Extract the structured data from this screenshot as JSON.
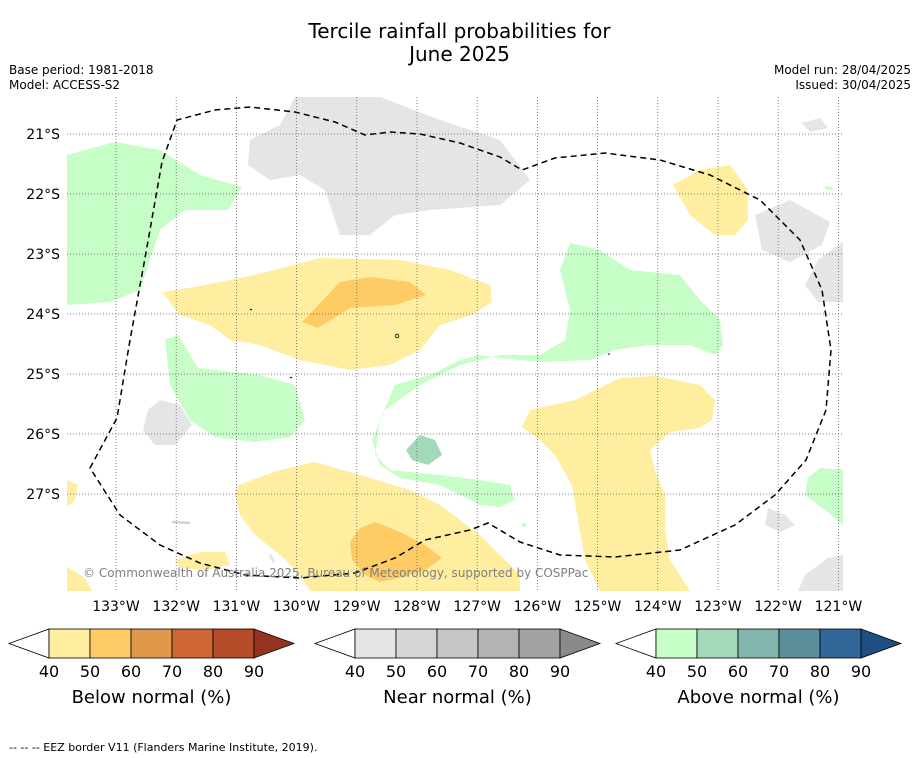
{
  "title_line1": "Tercile rainfall probabilities for",
  "title_line2": "June 2025",
  "base_period": "Base period: 1981-2018",
  "model": "Model: ACCESS-S2",
  "model_run": "Model run: 28/04/2025",
  "issued": "Issued: 30/04/2025",
  "copyright": "© Commonwealth of Australia 2025, Bureau of Meteorology, supported by COSPPac",
  "lat_ticks": [
    "21°S",
    "22°S",
    "23°S",
    "24°S",
    "25°S",
    "26°S",
    "27°S"
  ],
  "lon_ticks": [
    "133°W",
    "132°W",
    "131°W",
    "130°W",
    "129°W",
    "128°W",
    "127°W",
    "126°W",
    "125°W",
    "124°W",
    "123°W",
    "122°W",
    "121°W"
  ],
  "colorbars": [
    {
      "label": "Below normal (%)",
      "ticks": [
        "40",
        "50",
        "60",
        "70",
        "80",
        "90"
      ],
      "colors": [
        "#ffeda0",
        "#fecb64",
        "#e1984a",
        "#ce6633",
        "#b44b29",
        "#953222"
      ]
    },
    {
      "label": "Near normal (%)",
      "ticks": [
        "40",
        "50",
        "60",
        "70",
        "80",
        "90"
      ],
      "colors": [
        "#e5e5e5",
        "#d6d6d6",
        "#c6c6c6",
        "#b3b3b3",
        "#a2a2a2",
        "#8a8a8a"
      ]
    },
    {
      "label": "Above normal (%)",
      "ticks": [
        "40",
        "50",
        "60",
        "70",
        "80",
        "90"
      ],
      "colors": [
        "#c7fdc7",
        "#a3d9b8",
        "#82b7af",
        "#5b8f9c",
        "#336699",
        "#1f4f82"
      ]
    }
  ],
  "footer": "--  --  -- EEZ border V11 (Flanders Marine Institute, 2019)."
}
